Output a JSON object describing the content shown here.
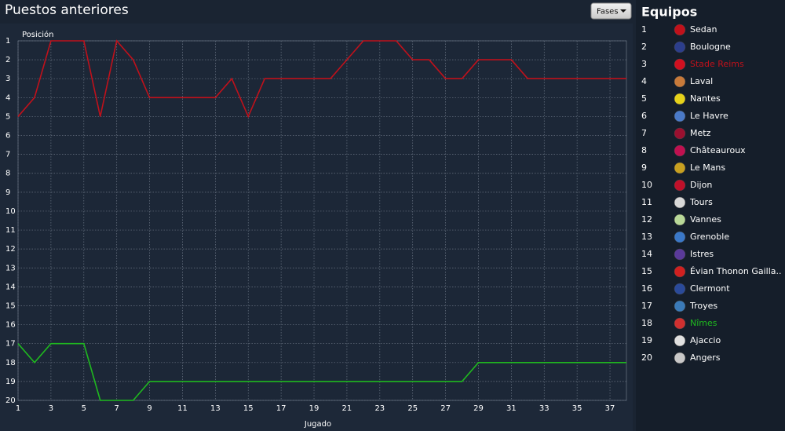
{
  "header": {
    "title": "Puestos anteriores",
    "button": "Fases"
  },
  "chart_data": {
    "type": "line",
    "y_label": "Posición",
    "x_label": "Jugado",
    "x": [
      1,
      2,
      3,
      4,
      5,
      6,
      7,
      8,
      9,
      10,
      11,
      12,
      13,
      14,
      15,
      16,
      17,
      18,
      19,
      20,
      21,
      22,
      23,
      24,
      25,
      26,
      27,
      28,
      29,
      30,
      31,
      32,
      33,
      34,
      35,
      36,
      37,
      38
    ],
    "xlim": [
      1,
      38
    ],
    "xticks": [
      1,
      3,
      5,
      7,
      9,
      11,
      13,
      15,
      17,
      19,
      21,
      23,
      25,
      27,
      29,
      31,
      33,
      35,
      37
    ],
    "ylim": [
      20,
      1
    ],
    "yticks": [
      1,
      2,
      3,
      4,
      5,
      6,
      7,
      8,
      9,
      10,
      11,
      12,
      13,
      14,
      15,
      16,
      17,
      18,
      19,
      20
    ],
    "grid": true,
    "series": [
      {
        "name": "Stade Reims",
        "color": "#c0111b",
        "values": [
          5,
          4,
          1,
          1,
          1,
          5,
          1,
          2,
          4,
          4,
          4,
          4,
          4,
          3,
          5,
          3,
          3,
          3,
          3,
          3,
          2,
          1,
          1,
          1,
          2,
          2,
          3,
          3,
          2,
          2,
          2,
          3,
          3,
          3,
          3,
          3,
          3,
          3
        ]
      },
      {
        "name": "Nîmes",
        "color": "#1fb81f",
        "values": [
          17,
          18,
          17,
          17,
          17,
          20,
          20,
          20,
          19,
          19,
          19,
          19,
          19,
          19,
          19,
          19,
          19,
          19,
          19,
          19,
          19,
          19,
          19,
          19,
          19,
          19,
          19,
          19,
          18,
          18,
          18,
          18,
          18,
          18,
          18,
          18,
          18,
          18
        ]
      }
    ]
  },
  "standings": {
    "title": "Equipos",
    "teams": [
      {
        "rank": 1,
        "name": "Sedan"
      },
      {
        "rank": 2,
        "name": "Boulogne"
      },
      {
        "rank": 3,
        "name": "Stade Reims"
      },
      {
        "rank": 4,
        "name": "Laval"
      },
      {
        "rank": 5,
        "name": "Nantes"
      },
      {
        "rank": 6,
        "name": "Le Havre"
      },
      {
        "rank": 7,
        "name": "Metz"
      },
      {
        "rank": 8,
        "name": "Châteauroux"
      },
      {
        "rank": 9,
        "name": "Le Mans"
      },
      {
        "rank": 10,
        "name": "Dijon"
      },
      {
        "rank": 11,
        "name": "Tours"
      },
      {
        "rank": 12,
        "name": "Vannes"
      },
      {
        "rank": 13,
        "name": "Grenoble"
      },
      {
        "rank": 14,
        "name": "Istres"
      },
      {
        "rank": 15,
        "name": "Évian Thonon Gailla.."
      },
      {
        "rank": 16,
        "name": "Clermont"
      },
      {
        "rank": 17,
        "name": "Troyes"
      },
      {
        "rank": 18,
        "name": "Nîmes"
      },
      {
        "rank": 19,
        "name": "Ajaccio"
      },
      {
        "rank": 20,
        "name": "Angers"
      }
    ]
  }
}
